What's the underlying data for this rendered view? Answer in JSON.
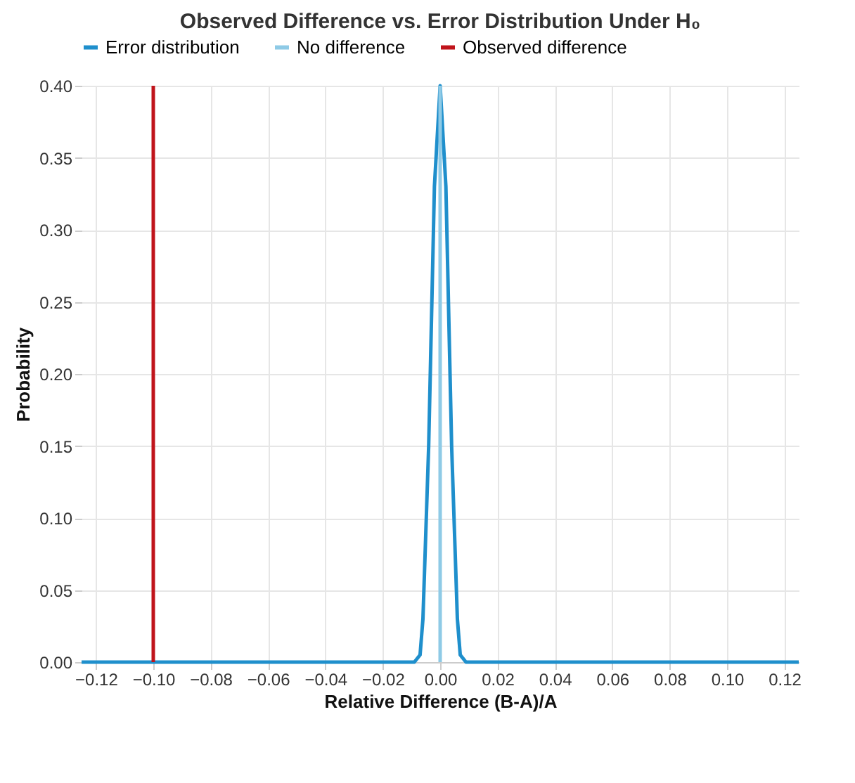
{
  "chart_data": {
    "type": "line",
    "title": "Observed Difference vs. Error Distribution Under H₀",
    "xlabel": "Relative Difference (B-A)/A",
    "ylabel": "Probability",
    "series": [
      {
        "name": "Error distribution",
        "color": "#1f8fcc",
        "x": [
          -0.125,
          -0.009,
          -0.007,
          -0.006,
          -0.004,
          -0.002,
          0,
          0.002,
          0.004,
          0.006,
          0.007,
          0.009,
          0.125
        ],
        "values": [
          0,
          0,
          0.005,
          0.03,
          0.15,
          0.33,
          0.4,
          0.33,
          0.15,
          0.03,
          0.005,
          0,
          0
        ]
      },
      {
        "name": "No difference",
        "color": "#8ecae6",
        "x": [
          0,
          0
        ],
        "values": [
          0,
          0.4
        ]
      },
      {
        "name": "Observed difference",
        "color": "#c0141b",
        "x": [
          -0.1,
          -0.1
        ],
        "values": [
          0,
          0.4
        ]
      }
    ],
    "xlim": [
      -0.125,
      0.125
    ],
    "xticks": [
      -0.12,
      {
        "value": -0.1,
        "label": "−0.10"
      },
      -0.08,
      -0.06,
      -0.04,
      -0.02,
      {
        "value": 0,
        "label": "0.00"
      },
      0.02,
      0.04,
      0.06,
      0.08,
      {
        "value": 0.1,
        "label": "0.10"
      },
      0.12
    ],
    "ylim": [
      0,
      0.4
    ],
    "yticks": [
      {
        "value": 0,
        "label": "0.00"
      },
      0.05,
      {
        "value": 0.1,
        "label": "0.10"
      },
      0.15,
      {
        "value": 0.2,
        "label": "0.20"
      },
      0.25,
      {
        "value": 0.3,
        "label": "0.30"
      },
      0.35,
      {
        "value": 0.4,
        "label": "0.40"
      }
    ],
    "grid": true,
    "legend": "top"
  }
}
